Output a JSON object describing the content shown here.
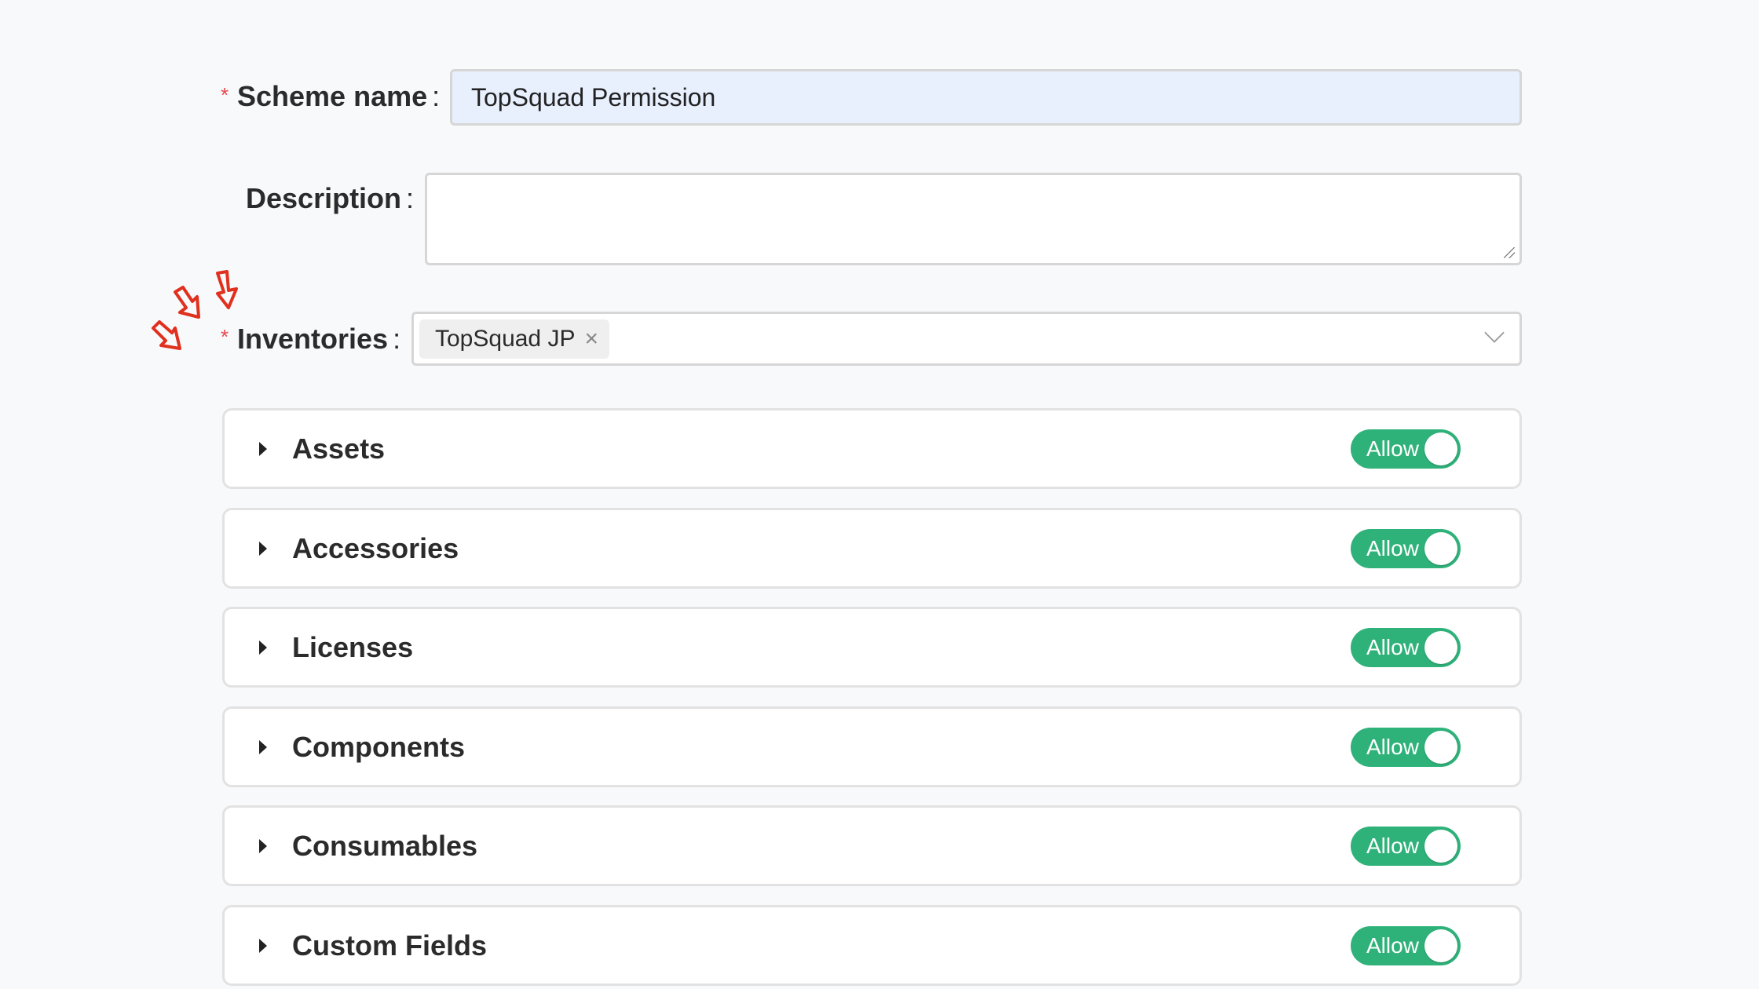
{
  "form": {
    "scheme_name": {
      "label": "Scheme name",
      "value": "TopSquad Permission",
      "required": true
    },
    "description": {
      "label": "Description",
      "value": ""
    },
    "inventories": {
      "label": "Inventories",
      "required": true,
      "tags": [
        "TopSquad JP"
      ]
    }
  },
  "panels": [
    {
      "title": "Assets",
      "toggle": "Allow",
      "on": true
    },
    {
      "title": "Accessories",
      "toggle": "Allow",
      "on": true
    },
    {
      "title": "Licenses",
      "toggle": "Allow",
      "on": true
    },
    {
      "title": "Components",
      "toggle": "Allow",
      "on": true
    },
    {
      "title": "Consumables",
      "toggle": "Allow",
      "on": true
    },
    {
      "title": "Custom Fields",
      "toggle": "Allow",
      "on": true
    }
  ],
  "colors": {
    "accent": "#2fb27a",
    "required": "#e5484d",
    "annotation": "#e0301e"
  }
}
